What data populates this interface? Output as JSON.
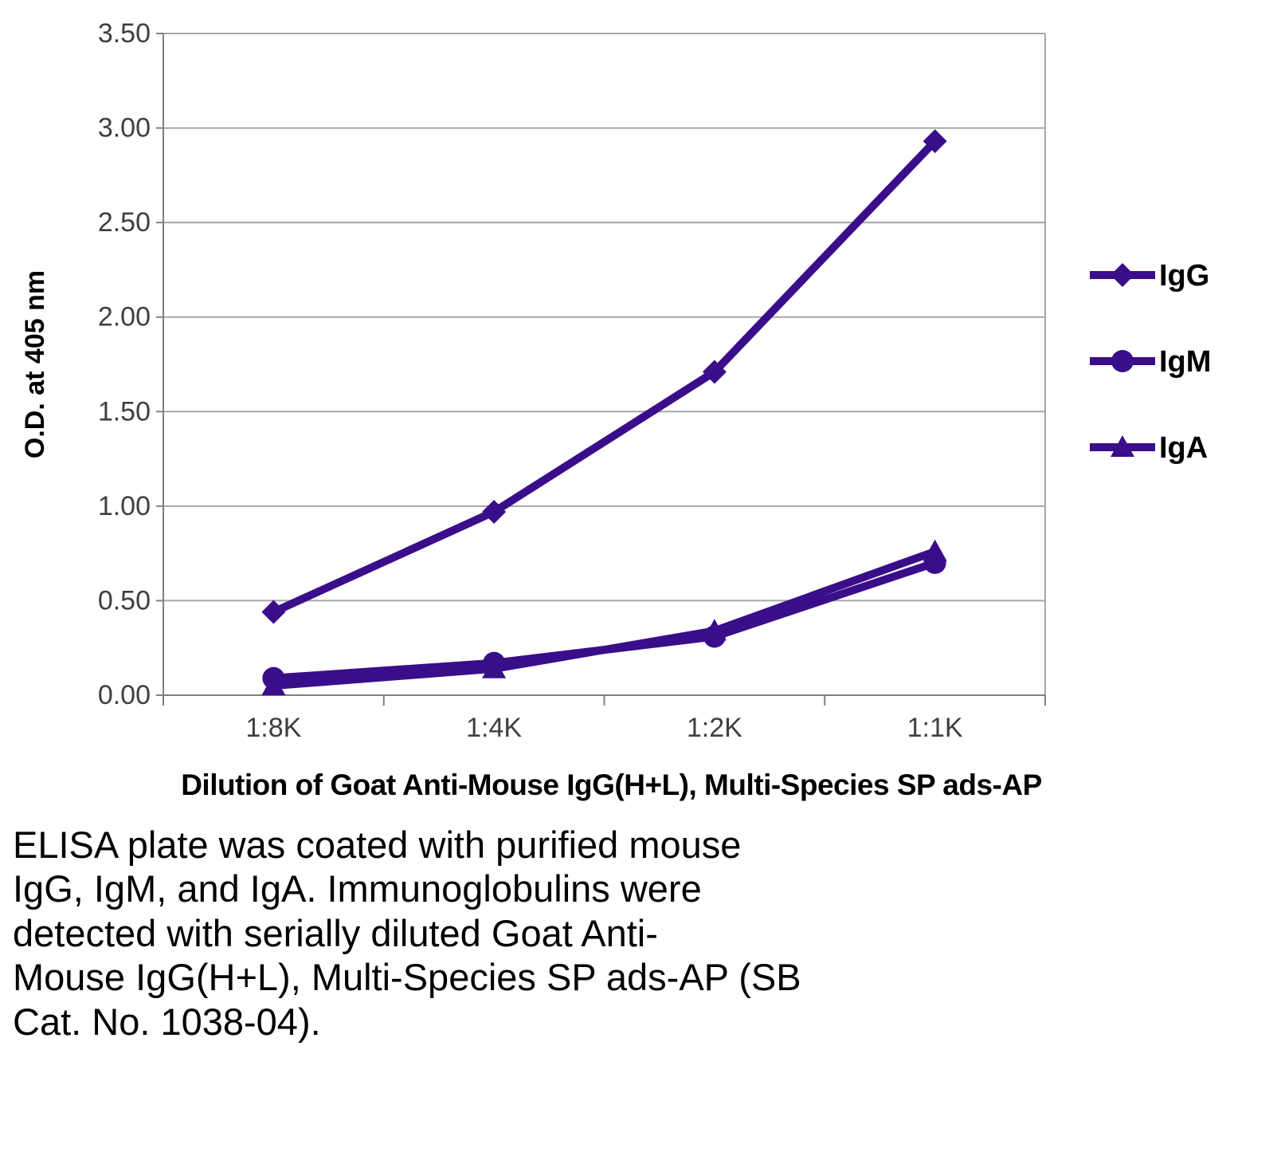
{
  "figure": {
    "caption": "ELISA plate was coated with purified mouse\nIgG, IgM, and IgA.  Immunoglobulins were\ndetected with serially diluted Goat Anti-\nMouse IgG(H+L), Multi-Species SP ads-AP (SB\nCat. No. 1038-04)."
  },
  "chart_data": {
    "type": "line",
    "title": "",
    "xlabel": "Dilution of Goat Anti-Mouse IgG(H+L), Multi-Species SP ads-AP",
    "ylabel": "O.D. at 405 nm",
    "categories": [
      "1:8K",
      "1:4K",
      "1:2K",
      "1:1K"
    ],
    "series": [
      {
        "name": "IgG",
        "marker": "diamond",
        "values": [
          0.44,
          0.97,
          1.71,
          2.93
        ]
      },
      {
        "name": "IgM",
        "marker": "circle",
        "values": [
          0.09,
          0.17,
          0.31,
          0.7
        ]
      },
      {
        "name": "IgA",
        "marker": "triangle",
        "values": [
          0.05,
          0.14,
          0.34,
          0.76
        ]
      }
    ],
    "ylim": [
      0,
      3.5
    ],
    "ytick_step": 0.5,
    "ytick_labels": [
      "0.00",
      "0.50",
      "1.00",
      "1.50",
      "2.00",
      "2.50",
      "3.00",
      "3.50"
    ],
    "grid": true,
    "legend_position": "right",
    "series_color": "#3A0D8A",
    "grid_color": "#A6A6A6",
    "axis_color": "#808080",
    "tick_label_color": "#3F3F3F"
  }
}
